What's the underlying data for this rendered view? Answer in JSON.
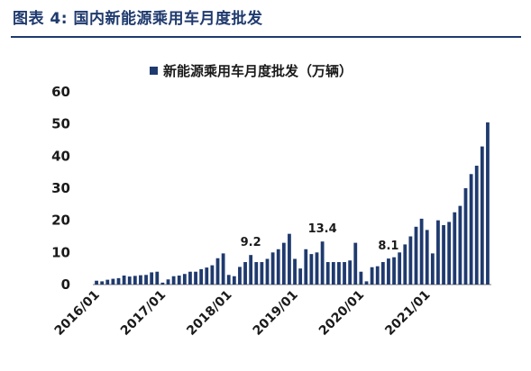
{
  "figure_title": "图表 4:  国内新能源乘用车月度批发",
  "chart_data": {
    "type": "bar",
    "title": "",
    "xlabel": "",
    "ylabel": "",
    "ylim": [
      0,
      60
    ],
    "yticks": [
      0,
      10,
      20,
      30,
      40,
      50,
      60
    ],
    "grid": false,
    "legend_position": "top-center",
    "bar_color": "#1f3a6e",
    "xtick_labels": [
      "2016/01",
      "2017/01",
      "2018/01",
      "2019/01",
      "2020/01",
      "2021/01"
    ],
    "series": [
      {
        "name": "新能源乘用车月度批发（万辆）",
        "values": [
          1.2,
          1.0,
          1.5,
          1.8,
          2.0,
          2.8,
          2.5,
          2.7,
          2.9,
          3.0,
          3.8,
          4.0,
          0.6,
          1.6,
          2.6,
          2.8,
          3.3,
          4.0,
          4.0,
          4.8,
          5.3,
          6.0,
          8.2,
          9.7,
          3.0,
          2.6,
          5.5,
          7.0,
          9.2,
          7.0,
          7.0,
          8.0,
          10.0,
          11.0,
          13.0,
          15.8,
          8.0,
          5.0,
          11.0,
          9.5,
          10.0,
          13.4,
          7.0,
          7.0,
          7.0,
          7.0,
          7.5,
          13.0,
          4.0,
          1.0,
          5.4,
          5.7,
          7.0,
          8.1,
          8.5,
          10.0,
          12.5,
          15.0,
          18.0,
          20.5,
          17.0,
          9.7,
          20.0,
          18.5,
          19.5,
          22.5,
          24.5,
          30.0,
          34.4,
          37.0,
          43.0,
          50.5
        ]
      }
    ],
    "annotations": [
      {
        "text": "9.2",
        "index": 28
      },
      {
        "text": "13.4",
        "index": 41
      },
      {
        "text": "8.1",
        "index": 53
      }
    ]
  }
}
